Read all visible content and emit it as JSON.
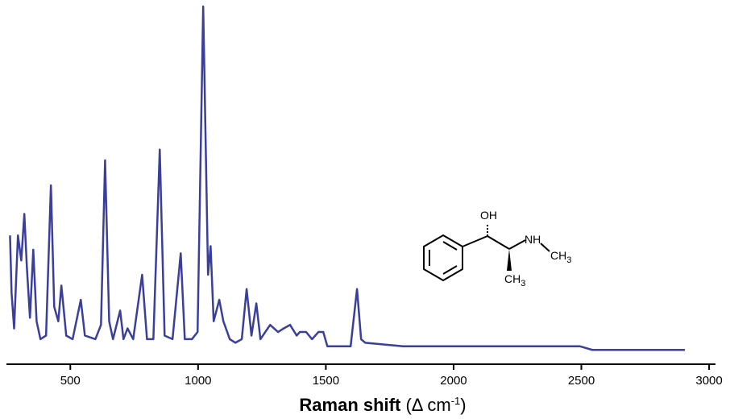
{
  "chart_data": {
    "type": "line",
    "x_label": "Raman shift",
    "x_label_unit": "(Δ cm",
    "x_label_sup": "-1",
    "x_label_close": ")",
    "xlim": [
      250,
      3025
    ],
    "ylim": [
      0,
      100
    ],
    "xticks": [
      500,
      1000,
      1500,
      2000,
      2500,
      3000
    ],
    "annotations": [
      {
        "text": "OH"
      },
      {
        "text": "NH"
      },
      {
        "text": "CH",
        "subscript": "3"
      },
      {
        "text": "CH",
        "subscript": "3"
      }
    ],
    "x": [
      264,
      270,
      280,
      295,
      308,
      320,
      330,
      342,
      355,
      368,
      383,
      405,
      424,
      437,
      453,
      465,
      484,
      509,
      541,
      557,
      598,
      620,
      636,
      652,
      667,
      695,
      708,
      724,
      746,
      781,
      800,
      825,
      850,
      869,
      900,
      932,
      948,
      976,
      998,
      1020,
      1039,
      1049,
      1061,
      1083,
      1099,
      1124,
      1146,
      1171,
      1190,
      1209,
      1228,
      1244,
      1282,
      1313,
      1335,
      1360,
      1386,
      1398,
      1423,
      1446,
      1471,
      1490,
      1506,
      1550,
      1597,
      1622,
      1638,
      1654,
      1802,
      2117,
      2495,
      2543,
      2748,
      2905
    ],
    "series": [
      {
        "color": "#3a3f9b",
        "values": [
          36,
          20,
          10,
          36,
          29,
          42,
          27,
          13,
          32,
          12,
          7,
          8,
          50,
          16,
          12,
          22,
          8,
          7,
          18,
          8,
          7,
          11,
          57,
          12,
          7,
          15,
          7,
          10,
          7,
          25,
          7,
          7,
          60,
          8,
          7,
          31,
          7,
          7,
          9,
          100,
          25,
          33,
          12,
          18,
          12,
          7,
          6,
          7,
          21,
          8,
          17,
          7,
          11,
          9,
          10,
          11,
          8,
          9,
          9,
          7,
          9,
          9,
          5,
          5,
          5,
          21,
          7,
          6,
          5,
          5,
          5,
          4,
          4,
          4
        ]
      }
    ]
  }
}
